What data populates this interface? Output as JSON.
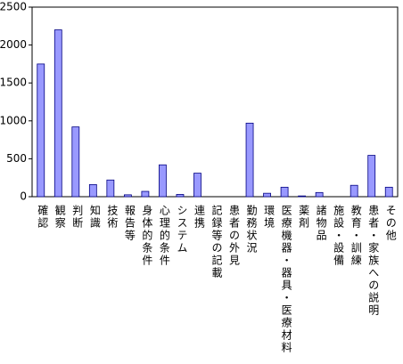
{
  "chart_data": {
    "type": "bar",
    "categories": [
      "確認",
      "観察",
      "判断",
      "知識",
      "技術",
      "報告等",
      "身体的条件",
      "心理的条件",
      "システム",
      "連携",
      "記録等の記載",
      "患者の外見",
      "勤務状況",
      "環境",
      "医療機器・器具・医療材料",
      "薬剤",
      "諸物品",
      "施設・設備",
      "教育・訓練",
      "患者・家族への説明",
      "その他"
    ],
    "values": [
      1750,
      2200,
      920,
      160,
      220,
      25,
      70,
      420,
      30,
      310,
      0,
      0,
      970,
      45,
      125,
      10,
      55,
      0,
      150,
      545,
      125
    ],
    "color": "#9999ff",
    "ylim": [
      0,
      2500
    ],
    "yticks": [
      0,
      500,
      1000,
      1500,
      2000,
      2500
    ],
    "grid": false
  }
}
